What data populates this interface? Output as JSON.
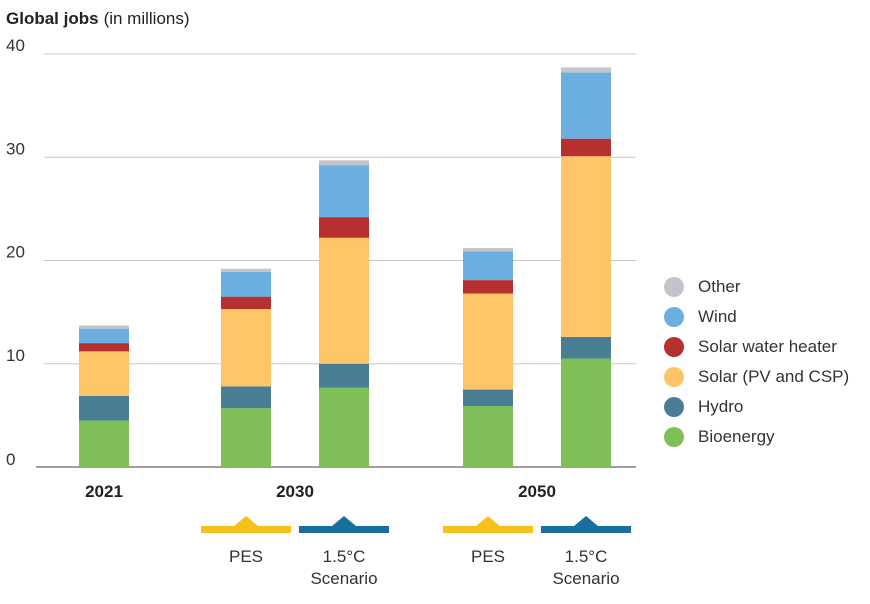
{
  "chart_data": {
    "type": "bar",
    "stacked": true,
    "title": "Global jobs",
    "title_suffix": "(in millions)",
    "ylim": [
      0,
      40
    ],
    "yticks": [
      "0",
      "10",
      "20",
      "30",
      "40"
    ],
    "grid": true,
    "legend_position": "right",
    "groups": [
      {
        "label": "2021",
        "bars": [
          0
        ]
      },
      {
        "label": "2030",
        "bars": [
          1,
          2
        ]
      },
      {
        "label": "2050",
        "bars": [
          3,
          4
        ]
      }
    ],
    "bar_scenarios": [
      null,
      "PES",
      "1.5°C Scenario",
      "PES",
      "1.5°C Scenario"
    ],
    "scenarios": [
      {
        "name": "PES",
        "label_lines": [
          "PES"
        ],
        "color": "#f5c11a"
      },
      {
        "name": "1.5°C Scenario",
        "label_lines": [
          "1.5°C",
          "Scenario"
        ],
        "color": "#1a6fa1"
      }
    ],
    "series": [
      {
        "name": "Bioenergy",
        "color": "#7ebf58",
        "values": [
          4.5,
          5.7,
          7.7,
          5.9,
          10.5
        ]
      },
      {
        "name": "Hydro",
        "color": "#4a7e94",
        "values": [
          2.4,
          2.1,
          2.3,
          1.6,
          2.1
        ]
      },
      {
        "name": "Solar (PV and CSP)",
        "color": "#fdc566",
        "values": [
          4.3,
          7.5,
          12.2,
          9.3,
          17.5
        ]
      },
      {
        "name": "Solar water heater",
        "color": "#b5302f",
        "values": [
          0.8,
          1.2,
          2.0,
          1.3,
          1.7
        ]
      },
      {
        "name": "Wind",
        "color": "#6aaee2",
        "values": [
          1.4,
          2.4,
          5.0,
          2.8,
          6.4
        ]
      },
      {
        "name": "Other",
        "color": "#c3c4cb",
        "values": [
          0.3,
          0.3,
          0.5,
          0.3,
          0.5
        ]
      }
    ]
  }
}
